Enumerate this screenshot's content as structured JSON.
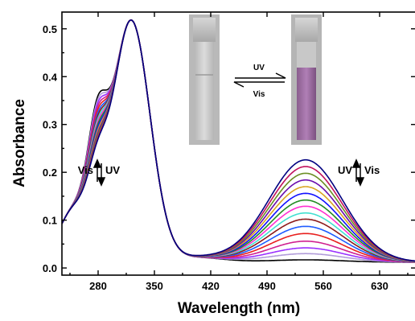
{
  "chart_data": {
    "type": "line",
    "xlabel": "Wavelength (nm)",
    "ylabel": "Absorbance",
    "xlim": [
      235,
      675
    ],
    "ylim": [
      -0.015,
      0.535
    ],
    "x_ticks": [
      280,
      350,
      420,
      490,
      560,
      630
    ],
    "y_ticks": [
      0.0,
      0.1,
      0.2,
      0.3,
      0.4,
      0.5
    ],
    "grid": false,
    "legend": "none",
    "annotations": {
      "left_arrow_label_vis": "Vis",
      "left_arrow_label_uv": "UV",
      "right_arrow_label_uv": "UV",
      "right_arrow_label_vis": "Vis",
      "photo_arrow_top": "UV",
      "photo_arrow_bottom": "Vis"
    },
    "series": [
      {
        "color": "#000000",
        "peak280": 0.337,
        "peak540": 0.005
      },
      {
        "color": "#b19cd9",
        "peak280": 0.33,
        "peak540": 0.018
      },
      {
        "color": "#9b30ff",
        "peak280": 0.323,
        "peak540": 0.03
      },
      {
        "color": "#d02090",
        "peak280": 0.316,
        "peak540": 0.044
      },
      {
        "color": "#e8201e",
        "peak280": 0.309,
        "peak540": 0.06
      },
      {
        "color": "#1e5bff",
        "peak280": 0.302,
        "peak540": 0.075
      },
      {
        "color": "#8b1a1a",
        "peak280": 0.296,
        "peak540": 0.09
      },
      {
        "color": "#40e0d0",
        "peak280": 0.29,
        "peak540": 0.103
      },
      {
        "color": "#ff2fd0",
        "peak280": 0.284,
        "peak540": 0.117
      },
      {
        "color": "#228b22",
        "peak280": 0.278,
        "peak540": 0.13
      },
      {
        "color": "#1010ff",
        "peak280": 0.272,
        "peak540": 0.144
      },
      {
        "color": "#d9a520",
        "peak280": 0.266,
        "peak540": 0.158
      },
      {
        "color": "#6a0dad",
        "peak280": 0.26,
        "peak540": 0.172
      },
      {
        "color": "#6b8e23",
        "peak280": 0.255,
        "peak540": 0.186
      },
      {
        "color": "#c0105c",
        "peak280": 0.25,
        "peak540": 0.2
      },
      {
        "color": "#000080",
        "peak280": 0.246,
        "peak540": 0.214
      }
    ]
  }
}
